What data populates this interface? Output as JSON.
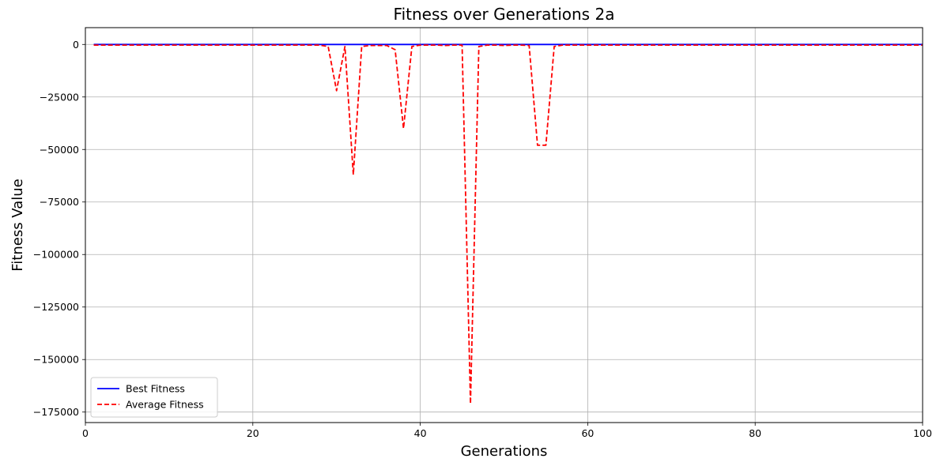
{
  "chart_data": {
    "type": "line",
    "title": "Fitness over Generations 2a",
    "xlabel": "Generations",
    "ylabel": "Fitness Value",
    "xlim": [
      0,
      100
    ],
    "ylim": [
      -180000,
      8000
    ],
    "xticks": [
      0,
      20,
      40,
      60,
      80,
      100
    ],
    "yticks": [
      0,
      -25000,
      -50000,
      -75000,
      -100000,
      -125000,
      -150000,
      -175000
    ],
    "xtick_labels": [
      "0",
      "20",
      "40",
      "60",
      "80",
      "100"
    ],
    "ytick_labels": [
      "0",
      "−25000",
      "−50000",
      "−75000",
      "−100000",
      "−125000",
      "−150000",
      "−175000"
    ],
    "grid": true,
    "legend_position": "lower-left",
    "series": [
      {
        "name": "Best Fitness",
        "color": "#0000ff",
        "style": "solid",
        "x": [
          1,
          100
        ],
        "y": [
          0,
          0
        ]
      },
      {
        "name": "Average Fitness",
        "color": "#ff0000",
        "style": "dashed",
        "x": [
          1,
          5,
          10,
          15,
          20,
          25,
          28,
          29,
          30,
          31,
          32,
          33,
          34,
          35,
          36,
          37,
          38,
          39,
          40,
          41,
          42,
          43,
          44,
          45,
          46,
          47,
          48,
          49,
          50,
          51,
          52,
          53,
          54,
          55,
          56,
          57,
          60,
          65,
          70,
          75,
          80,
          85,
          90,
          95,
          100
        ],
        "y": [
          -300,
          -300,
          -300,
          -300,
          -300,
          -300,
          -300,
          -1000,
          -22000,
          -1000,
          -62000,
          -1000,
          -500,
          -500,
          -500,
          -2500,
          -40000,
          -1000,
          -300,
          -300,
          -300,
          -500,
          -300,
          -300,
          -171000,
          -1000,
          -300,
          -300,
          -500,
          -300,
          -300,
          -500,
          -48000,
          -48000,
          -1000,
          -300,
          -300,
          -300,
          -300,
          -300,
          -300,
          -300,
          -300,
          -300,
          -300
        ]
      }
    ]
  }
}
